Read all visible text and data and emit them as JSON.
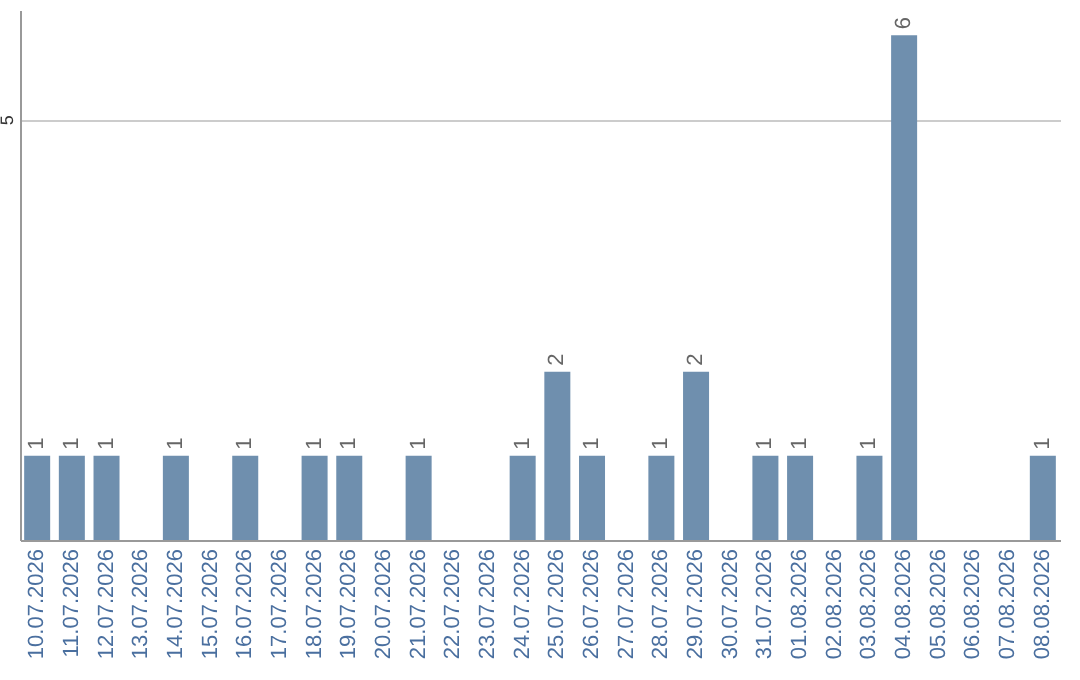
{
  "chart_data": {
    "type": "bar",
    "categories": [
      "10.07.2026",
      "11.07.2026",
      "12.07.2026",
      "13.07.2026",
      "14.07.2026",
      "15.07.2026",
      "16.07.2026",
      "17.07.2026",
      "18.07.2026",
      "19.07.2026",
      "20.07.2026",
      "21.07.2026",
      "22.07.2026",
      "23.07.2026",
      "24.07.2026",
      "25.07.2026",
      "26.07.2026",
      "27.07.2026",
      "28.07.2026",
      "29.07.2026",
      "30.07.2026",
      "31.07.2026",
      "01.08.2026",
      "02.08.2026",
      "03.08.2026",
      "04.08.2026",
      "05.08.2026",
      "06.08.2026",
      "07.08.2026",
      "08.08.2026"
    ],
    "values": [
      1,
      1,
      1,
      0,
      1,
      0,
      1,
      0,
      1,
      1,
      0,
      1,
      0,
      0,
      1,
      2,
      1,
      0,
      1,
      2,
      0,
      1,
      1,
      0,
      1,
      6,
      0,
      0,
      0,
      1
    ],
    "value_labels": [
      "1",
      "1",
      "1",
      null,
      "1",
      null,
      "1",
      null,
      "1",
      "1",
      null,
      "1",
      null,
      null,
      "1",
      "2",
      "1",
      null,
      "1",
      "2",
      null,
      "1",
      "1",
      null,
      "1",
      "6",
      null,
      null,
      null,
      "1"
    ],
    "color": "#6f8fae",
    "ylim": [
      0,
      6.3
    ],
    "yticks": [
      5
    ],
    "grid": "y"
  }
}
